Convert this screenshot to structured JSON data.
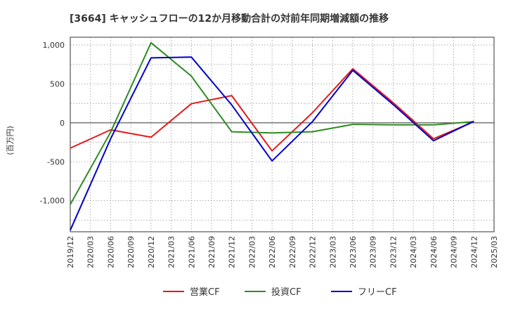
{
  "chart_data": {
    "type": "line",
    "title": "[3664]  キャッシュフローの12か月移動合計の対前年同期増減額の推移",
    "ylabel": "(百万円)",
    "xlabel": "",
    "ylim": [
      -1400,
      1100
    ],
    "yticks": [
      1000,
      500,
      0,
      -500,
      -1000
    ],
    "ytick_labels": [
      "1,000",
      "500",
      "0",
      "-500",
      "-1,000"
    ],
    "x_ticks": [
      "2019/12",
      "2020/03",
      "2020/06",
      "2020/09",
      "2020/12",
      "2021/03",
      "2021/06",
      "2021/09",
      "2021/12",
      "2022/03",
      "2022/06",
      "2022/09",
      "2022/12",
      "2023/03",
      "2023/06",
      "2023/09",
      "2023/12",
      "2024/03",
      "2024/06",
      "2024/09",
      "2024/12",
      "2025/03"
    ],
    "grid": true,
    "legend": "bottom",
    "series": [
      {
        "name": "営業CF",
        "color": "#e41a1c",
        "points": [
          {
            "x": "2019/12",
            "y": -325
          },
          {
            "x": "2020/06",
            "y": -90
          },
          {
            "x": "2020/12",
            "y": -185
          },
          {
            "x": "2021/06",
            "y": 245
          },
          {
            "x": "2021/12",
            "y": 350
          },
          {
            "x": "2022/06",
            "y": -360
          },
          {
            "x": "2022/12",
            "y": 130
          },
          {
            "x": "2023/06",
            "y": 695
          },
          {
            "x": "2023/12",
            "y": 260
          },
          {
            "x": "2024/06",
            "y": -205
          },
          {
            "x": "2024/12",
            "y": 15
          }
        ]
      },
      {
        "name": "投資CF",
        "color": "#2e8b22",
        "points": [
          {
            "x": "2019/12",
            "y": -1050
          },
          {
            "x": "2020/06",
            "y": -120
          },
          {
            "x": "2020/12",
            "y": 1030
          },
          {
            "x": "2021/06",
            "y": 600
          },
          {
            "x": "2021/12",
            "y": -115
          },
          {
            "x": "2022/06",
            "y": -130
          },
          {
            "x": "2022/12",
            "y": -115
          },
          {
            "x": "2023/06",
            "y": -20
          },
          {
            "x": "2023/12",
            "y": -25
          },
          {
            "x": "2024/06",
            "y": -25
          },
          {
            "x": "2024/12",
            "y": 15
          }
        ]
      },
      {
        "name": "フリーCF",
        "color": "#0000cc",
        "points": [
          {
            "x": "2019/12",
            "y": -1380
          },
          {
            "x": "2020/06",
            "y": -205
          },
          {
            "x": "2020/12",
            "y": 835
          },
          {
            "x": "2021/06",
            "y": 845
          },
          {
            "x": "2021/12",
            "y": 230
          },
          {
            "x": "2022/06",
            "y": -490
          },
          {
            "x": "2022/12",
            "y": 15
          },
          {
            "x": "2023/06",
            "y": 675
          },
          {
            "x": "2023/12",
            "y": 235
          },
          {
            "x": "2024/06",
            "y": -230
          },
          {
            "x": "2024/12",
            "y": 20
          }
        ]
      }
    ]
  }
}
